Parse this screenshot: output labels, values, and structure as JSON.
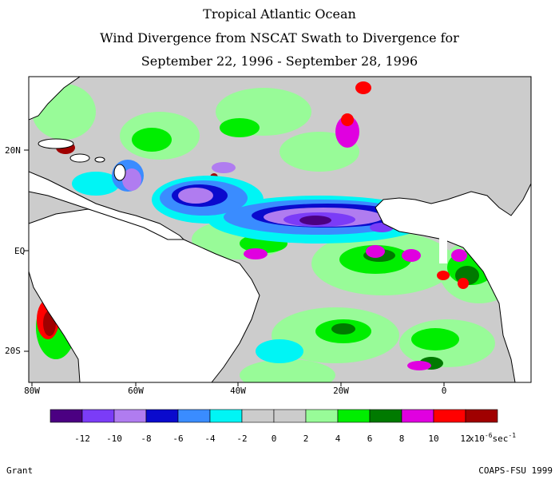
{
  "header": {
    "line1": "Tropical Atlantic Ocean",
    "line2": "Wind Divergence from NSCAT Swath to Divergence for",
    "line3": "September 22, 1996 - September 28, 1996"
  },
  "axes": {
    "lat_labels": [
      "20N",
      "EQ",
      "20S"
    ],
    "lon_labels": [
      "80W",
      "60W",
      "40W",
      "20W",
      "0"
    ]
  },
  "legend": {
    "colors": [
      "#4b0082",
      "#7b3cf7",
      "#b07cf0",
      "#0a0acd",
      "#3a8cff",
      "#00f5f5",
      "#cccccc",
      "#cccccc",
      "#98fb98",
      "#00ee00",
      "#007a00",
      "#e000e0",
      "#ff0000",
      "#a00000"
    ],
    "tick_labels": [
      "-12",
      "-10",
      "-8",
      "-6",
      "-4",
      "-2",
      "0",
      "2",
      "4",
      "6",
      "8",
      "10",
      "12"
    ],
    "unit_text": "x10",
    "unit_exp": "-6",
    "unit_rest": "sec",
    "unit_rest_exp": "-1"
  },
  "footer": {
    "left": "Grant",
    "right": "COAPS-FSU 1999"
  },
  "colors": {
    "land": "#ffffff",
    "coast": "#000000",
    "neutral": "#cccccc"
  }
}
